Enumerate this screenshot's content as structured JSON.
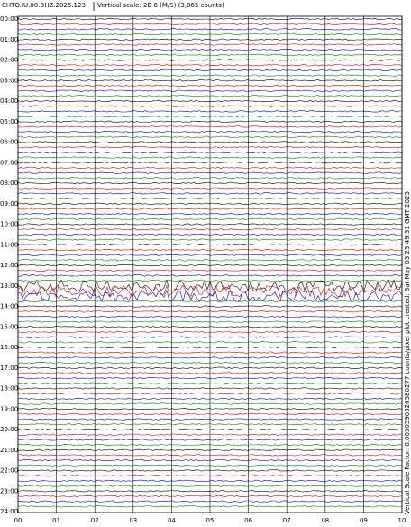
{
  "header": {
    "station": "CHTO.IU.00.BHZ.2025.123",
    "scale": "Vertical scale: 2E-6 (M/S) (3,065 counts)"
  },
  "side_note": "Vertical Scale Factor: 0.0050590520580277 counts/pixel plot created: Sat May 03 23:49:31 GMT 2025",
  "trace_colors": [
    "#000000",
    "#e00000",
    "#0000e0",
    "#008000"
  ],
  "y_labels": [
    "00:00",
    "01:00",
    "02:00",
    "03:00",
    "04:00",
    "05:00",
    "06:00",
    "07:00",
    "08:00",
    "09:00",
    "10:00",
    "11:00",
    "12:00",
    "13:00",
    "14:00",
    "15:00",
    "16:00",
    "17:00",
    "18:00",
    "19:00",
    "20:00",
    "21:00",
    "22:00",
    "23:00",
    "24:00"
  ],
  "x_labels": [
    "00",
    "01",
    "02",
    "03",
    "04",
    "05",
    "06",
    "07",
    "08",
    "09",
    "10"
  ]
}
